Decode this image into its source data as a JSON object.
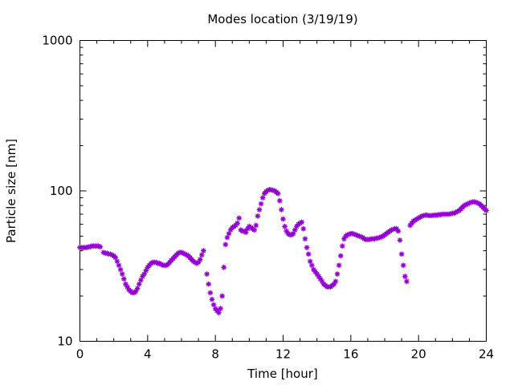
{
  "chart_data": {
    "type": "scatter",
    "title": "Modes location (3/19/19)",
    "xlabel": "Time [hour]",
    "ylabel": "Particle size [nm]",
    "xlim": [
      0,
      24
    ],
    "ylim": [
      10,
      1000
    ],
    "yscale": "log",
    "x_ticks": [
      0,
      4,
      8,
      12,
      16,
      20,
      24
    ],
    "x_tick_labels": [
      "0",
      "4",
      "8",
      "12",
      "16",
      "20",
      "24"
    ],
    "y_ticks": [
      10,
      100,
      1000
    ],
    "y_tick_labels": [
      "10",
      "100",
      "1000"
    ],
    "grid": false,
    "legend": false,
    "marker_color": "#9400d3",
    "series": [
      {
        "points": [
          [
            0.0,
            42
          ],
          [
            0.1,
            42
          ],
          [
            0.2,
            42
          ],
          [
            0.3,
            42
          ],
          [
            0.4,
            42
          ],
          [
            0.5,
            42.5
          ],
          [
            0.6,
            42.5
          ],
          [
            0.7,
            43
          ],
          [
            0.8,
            43
          ],
          [
            0.9,
            43
          ],
          [
            1.0,
            43
          ],
          [
            1.1,
            43
          ],
          [
            1.2,
            42.5
          ],
          [
            1.4,
            39
          ],
          [
            1.5,
            38.5
          ],
          [
            1.6,
            38.5
          ],
          [
            1.7,
            38
          ],
          [
            1.8,
            38
          ],
          [
            1.9,
            37.5
          ],
          [
            2.0,
            37
          ],
          [
            2.1,
            36
          ],
          [
            2.2,
            34
          ],
          [
            2.3,
            32
          ],
          [
            2.4,
            30
          ],
          [
            2.5,
            28
          ],
          [
            2.6,
            26
          ],
          [
            2.7,
            24
          ],
          [
            2.8,
            23
          ],
          [
            2.9,
            22
          ],
          [
            3.0,
            21.5
          ],
          [
            3.1,
            21
          ],
          [
            3.2,
            21
          ],
          [
            3.3,
            21.5
          ],
          [
            3.4,
            22.5
          ],
          [
            3.5,
            24
          ],
          [
            3.6,
            25.5
          ],
          [
            3.7,
            27
          ],
          [
            3.8,
            28
          ],
          [
            3.9,
            29.5
          ],
          [
            4.0,
            31
          ],
          [
            4.1,
            32
          ],
          [
            4.2,
            33
          ],
          [
            4.3,
            33.5
          ],
          [
            4.4,
            33.5
          ],
          [
            4.5,
            33.5
          ],
          [
            4.6,
            33
          ],
          [
            4.7,
            33
          ],
          [
            4.8,
            32.5
          ],
          [
            4.9,
            32
          ],
          [
            5.0,
            32
          ],
          [
            5.1,
            32
          ],
          [
            5.2,
            32.5
          ],
          [
            5.3,
            33.5
          ],
          [
            5.4,
            34.5
          ],
          [
            5.5,
            35.5
          ],
          [
            5.6,
            36.5
          ],
          [
            5.7,
            37.5
          ],
          [
            5.8,
            38.5
          ],
          [
            5.9,
            39
          ],
          [
            6.0,
            39
          ],
          [
            6.1,
            38.5
          ],
          [
            6.2,
            38
          ],
          [
            6.3,
            37.5
          ],
          [
            6.4,
            37
          ],
          [
            6.5,
            36
          ],
          [
            6.6,
            35
          ],
          [
            6.7,
            34
          ],
          [
            6.8,
            33.5
          ],
          [
            6.9,
            33
          ],
          [
            7.0,
            33.5
          ],
          [
            7.1,
            35
          ],
          [
            7.2,
            37.5
          ],
          [
            7.3,
            40
          ],
          [
            7.5,
            28
          ],
          [
            7.6,
            24
          ],
          [
            7.7,
            21
          ],
          [
            7.8,
            19
          ],
          [
            7.9,
            17.5
          ],
          [
            8.0,
            16.5
          ],
          [
            8.1,
            16
          ],
          [
            8.2,
            15.5
          ],
          [
            8.3,
            16.5
          ],
          [
            8.4,
            20
          ],
          [
            8.5,
            31
          ],
          [
            8.6,
            44
          ],
          [
            8.7,
            49
          ],
          [
            8.8,
            52
          ],
          [
            8.9,
            55
          ],
          [
            9.0,
            57
          ],
          [
            9.1,
            58
          ],
          [
            9.2,
            59
          ],
          [
            9.3,
            61
          ],
          [
            9.4,
            66
          ],
          [
            9.5,
            55
          ],
          [
            9.6,
            54
          ],
          [
            9.7,
            54
          ],
          [
            9.8,
            53
          ],
          [
            9.9,
            56
          ],
          [
            10.0,
            58
          ],
          [
            10.1,
            57
          ],
          [
            10.2,
            56
          ],
          [
            10.3,
            55
          ],
          [
            10.4,
            59
          ],
          [
            10.5,
            68
          ],
          [
            10.6,
            75
          ],
          [
            10.7,
            82
          ],
          [
            10.8,
            90
          ],
          [
            10.9,
            96
          ],
          [
            11.0,
            99
          ],
          [
            11.1,
            101
          ],
          [
            11.2,
            102
          ],
          [
            11.3,
            101.5
          ],
          [
            11.4,
            101
          ],
          [
            11.5,
            100
          ],
          [
            11.6,
            98
          ],
          [
            11.7,
            96
          ],
          [
            11.8,
            86
          ],
          [
            11.9,
            75
          ],
          [
            12.0,
            65
          ],
          [
            12.1,
            58
          ],
          [
            12.2,
            54
          ],
          [
            12.3,
            52
          ],
          [
            12.4,
            51
          ],
          [
            12.5,
            51
          ],
          [
            12.6,
            52
          ],
          [
            12.7,
            55
          ],
          [
            12.8,
            58
          ],
          [
            12.9,
            60
          ],
          [
            13.0,
            61
          ],
          [
            13.1,
            62
          ],
          [
            13.2,
            56
          ],
          [
            13.3,
            48
          ],
          [
            13.4,
            42
          ],
          [
            13.5,
            38
          ],
          [
            13.6,
            34
          ],
          [
            13.7,
            32
          ],
          [
            13.8,
            30
          ],
          [
            13.9,
            29
          ],
          [
            14.0,
            28
          ],
          [
            14.1,
            27
          ],
          [
            14.2,
            26
          ],
          [
            14.3,
            25
          ],
          [
            14.4,
            24
          ],
          [
            14.5,
            23.5
          ],
          [
            14.6,
            23
          ],
          [
            14.7,
            23
          ],
          [
            14.8,
            23
          ],
          [
            14.9,
            23.5
          ],
          [
            15.0,
            24
          ],
          [
            15.1,
            25
          ],
          [
            15.2,
            28
          ],
          [
            15.3,
            32
          ],
          [
            15.4,
            37
          ],
          [
            15.5,
            43
          ],
          [
            15.6,
            48
          ],
          [
            15.7,
            50
          ],
          [
            15.8,
            51
          ],
          [
            15.9,
            51.5
          ],
          [
            16.0,
            52
          ],
          [
            16.1,
            52
          ],
          [
            16.2,
            51.5
          ],
          [
            16.3,
            51
          ],
          [
            16.4,
            50.5
          ],
          [
            16.5,
            50
          ],
          [
            16.6,
            49.5
          ],
          [
            16.7,
            49
          ],
          [
            16.8,
            48
          ],
          [
            16.9,
            47.5
          ],
          [
            17.0,
            47.5
          ],
          [
            17.1,
            47.5
          ],
          [
            17.2,
            48
          ],
          [
            17.3,
            48
          ],
          [
            17.4,
            48
          ],
          [
            17.5,
            48.5
          ],
          [
            17.6,
            48.5
          ],
          [
            17.7,
            49
          ],
          [
            17.8,
            49.5
          ],
          [
            17.9,
            50
          ],
          [
            18.0,
            51
          ],
          [
            18.1,
            52
          ],
          [
            18.2,
            53
          ],
          [
            18.3,
            54
          ],
          [
            18.4,
            55
          ],
          [
            18.5,
            55.5
          ],
          [
            18.6,
            56
          ],
          [
            18.7,
            56
          ],
          [
            18.8,
            54
          ],
          [
            18.9,
            47
          ],
          [
            19.0,
            38
          ],
          [
            19.1,
            32
          ],
          [
            19.2,
            27
          ],
          [
            19.3,
            25
          ],
          [
            19.5,
            59
          ],
          [
            19.6,
            61
          ],
          [
            19.7,
            63
          ],
          [
            19.8,
            64
          ],
          [
            19.9,
            65
          ],
          [
            20.0,
            66
          ],
          [
            20.1,
            67
          ],
          [
            20.2,
            68
          ],
          [
            20.3,
            68.5
          ],
          [
            20.4,
            69
          ],
          [
            20.5,
            69
          ],
          [
            20.6,
            68.5
          ],
          [
            20.7,
            68.5
          ],
          [
            20.8,
            68.5
          ],
          [
            20.9,
            69
          ],
          [
            21.0,
            69
          ],
          [
            21.1,
            69
          ],
          [
            21.2,
            69.5
          ],
          [
            21.3,
            69.5
          ],
          [
            21.4,
            70
          ],
          [
            21.5,
            70
          ],
          [
            21.6,
            70
          ],
          [
            21.7,
            70
          ],
          [
            21.8,
            70
          ],
          [
            21.9,
            70.5
          ],
          [
            22.0,
            71
          ],
          [
            22.1,
            71
          ],
          [
            22.2,
            72
          ],
          [
            22.3,
            73
          ],
          [
            22.4,
            74
          ],
          [
            22.5,
            76
          ],
          [
            22.6,
            78
          ],
          [
            22.7,
            80
          ],
          [
            22.8,
            81
          ],
          [
            22.9,
            82
          ],
          [
            23.0,
            83
          ],
          [
            23.1,
            84
          ],
          [
            23.2,
            84.5
          ],
          [
            23.3,
            84.5
          ],
          [
            23.4,
            84
          ],
          [
            23.5,
            83
          ],
          [
            23.6,
            82
          ],
          [
            23.7,
            80
          ],
          [
            23.8,
            78
          ],
          [
            23.9,
            76
          ],
          [
            24.0,
            74
          ]
        ]
      }
    ]
  }
}
